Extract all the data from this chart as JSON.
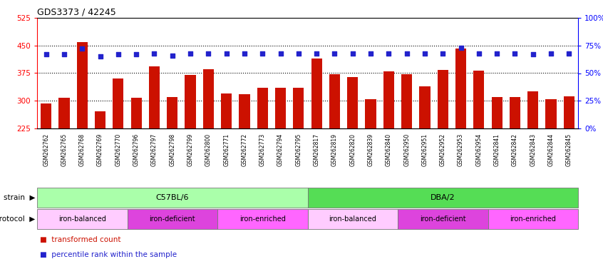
{
  "title": "GDS3373 / 42245",
  "samples": [
    "GSM262762",
    "GSM262765",
    "GSM262768",
    "GSM262769",
    "GSM262770",
    "GSM262796",
    "GSM262797",
    "GSM262798",
    "GSM262799",
    "GSM262800",
    "GSM262771",
    "GSM262772",
    "GSM262773",
    "GSM262794",
    "GSM262795",
    "GSM262817",
    "GSM262819",
    "GSM262820",
    "GSM262839",
    "GSM262840",
    "GSM262950",
    "GSM262951",
    "GSM262952",
    "GSM262953",
    "GSM262954",
    "GSM262841",
    "GSM262842",
    "GSM262843",
    "GSM262844",
    "GSM262845"
  ],
  "bar_values": [
    293,
    308,
    460,
    272,
    360,
    308,
    393,
    310,
    370,
    385,
    320,
    318,
    335,
    335,
    335,
    415,
    373,
    365,
    305,
    380,
    373,
    340,
    383,
    442,
    382,
    310,
    310,
    325,
    305,
    312
  ],
  "percentile_values": [
    67,
    67,
    72,
    65,
    67,
    67,
    68,
    66,
    68,
    68,
    68,
    68,
    68,
    68,
    68,
    68,
    68,
    68,
    68,
    68,
    68,
    68,
    68,
    73,
    68,
    68,
    68,
    67,
    68,
    68
  ],
  "ylim_left": [
    225,
    525
  ],
  "ylim_right": [
    0,
    100
  ],
  "yticks_left": [
    225,
    300,
    375,
    450,
    525
  ],
  "yticks_right": [
    0,
    25,
    50,
    75,
    100
  ],
  "bar_color": "#cc1100",
  "dot_color": "#2222cc",
  "bar_bottom": 225,
  "plot_bg_color": "#ffffff",
  "xlabel_bg_color": "#d4d4d4",
  "strain_groups": [
    {
      "label": "C57BL/6",
      "start": 0,
      "end": 15,
      "color": "#aaffaa"
    },
    {
      "label": "DBA/2",
      "start": 15,
      "end": 30,
      "color": "#55dd55"
    }
  ],
  "protocol_groups": [
    {
      "label": "iron-balanced",
      "start": 0,
      "end": 5,
      "color": "#ffccff"
    },
    {
      "label": "iron-deficient",
      "start": 5,
      "end": 10,
      "color": "#dd44dd"
    },
    {
      "label": "iron-enriched",
      "start": 10,
      "end": 15,
      "color": "#ff66ff"
    },
    {
      "label": "iron-balanced",
      "start": 15,
      "end": 20,
      "color": "#ffccff"
    },
    {
      "label": "iron-deficient",
      "start": 20,
      "end": 25,
      "color": "#dd44dd"
    },
    {
      "label": "iron-enriched",
      "start": 25,
      "end": 30,
      "color": "#ff66ff"
    }
  ]
}
